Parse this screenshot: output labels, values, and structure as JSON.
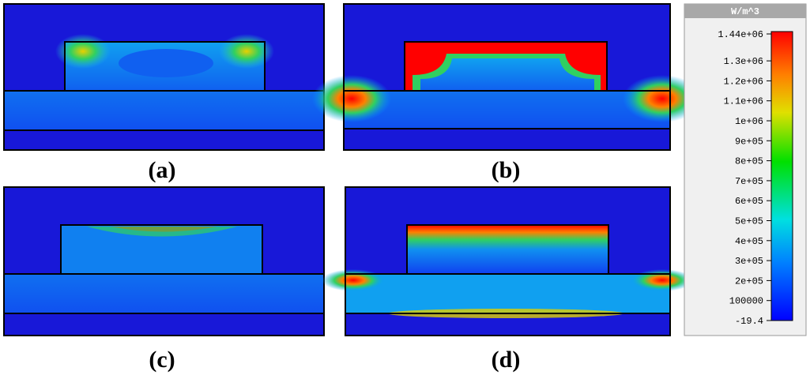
{
  "panels": [
    {
      "label": "(a)"
    },
    {
      "label": "(b)"
    },
    {
      "label": "(c)"
    },
    {
      "label": "(d)"
    }
  ],
  "colorbar": {
    "title": "W/m^3",
    "ticks": [
      "1.44e+06",
      "1.3e+06",
      "1.2e+06",
      "1.1e+06",
      "1e+06",
      "9e+05",
      "8e+05",
      "7e+05",
      "6e+05",
      "5e+05",
      "4e+05",
      "3e+05",
      "2e+05",
      "100000",
      "-19.4"
    ]
  }
}
